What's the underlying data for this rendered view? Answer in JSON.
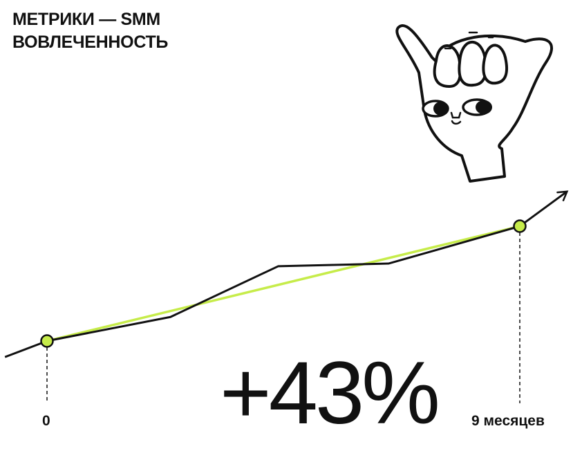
{
  "header": {
    "line1": "МЕТРИКИ — SMM",
    "line2": "ВОВЛЕЧЕННОСТЬ"
  },
  "headline_value": "+43%",
  "illustration": "hand-shaka-character",
  "colors": {
    "trend": "#c6ec4a",
    "line": "#111111",
    "marker": "#c6ec4a"
  },
  "chart_data": {
    "type": "line",
    "x_tick_labels": [
      "0",
      "9 месяцев"
    ],
    "series": [
      {
        "values_x": [
          -0.8,
          0,
          2.35,
          4.4,
          6.5,
          9,
          9.9
        ],
        "values_y": [
          -6,
          0,
          9,
          28,
          29,
          43,
          56
        ],
        "color": "#111111",
        "arrow_end": true
      },
      {
        "values_x": [
          0,
          9
        ],
        "values_y": [
          0,
          43
        ],
        "color": "#c6ec4a"
      }
    ],
    "markers": [
      {
        "x": 0,
        "y": 0
      },
      {
        "x": 9,
        "y": 43
      }
    ],
    "annotation": "+43%",
    "grid": false
  }
}
